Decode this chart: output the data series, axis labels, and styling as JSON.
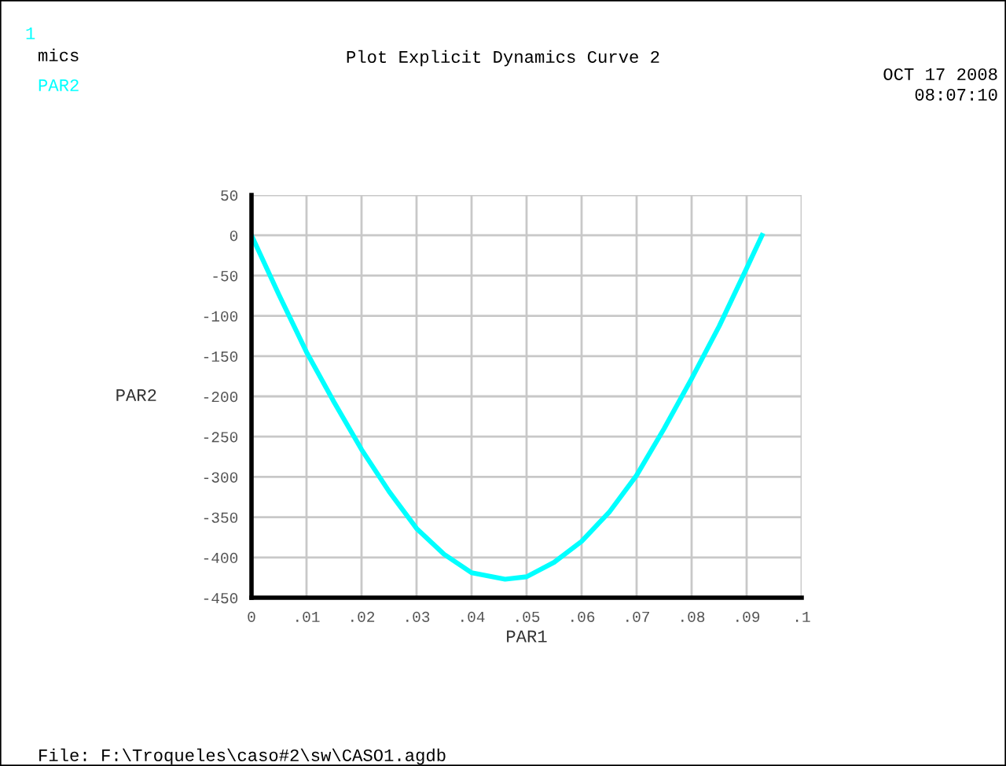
{
  "chart_data": {
    "type": "line",
    "title": "Plot Explicit Dynamics Curve 2",
    "xlabel": "PAR1",
    "ylabel": "PAR2",
    "annotations": [
      "1",
      "mics",
      "PAR2",
      "OCT 17 2008",
      "08:07:10",
      "File: F:\\Troqueles\\caso#2\\sw\\CASO1.agdb"
    ],
    "x": [
      0,
      0.005,
      0.01,
      0.015,
      0.02,
      0.025,
      0.03,
      0.035,
      0.04,
      0.0461,
      0.05,
      0.055,
      0.06,
      0.065,
      0.07,
      0.075,
      0.08,
      0.085,
      0.09,
      0.0928
    ],
    "series": [
      {
        "color": "#00ffff",
        "values": [
          0,
          -74,
          -145,
          -207,
          -266,
          -318,
          -364,
          -396,
          -419,
          -427,
          -424,
          -406,
          -380,
          -344,
          -298,
          -240,
          -178,
          -113,
          -41,
          0
        ]
      }
    ],
    "xlim": [
      0,
      0.1
    ],
    "xticks": [
      {
        "value": 0,
        "label": "0"
      },
      {
        "value": 0.01,
        "label": ".01"
      },
      {
        "value": 0.02,
        "label": ".02"
      },
      {
        "value": 0.03,
        "label": ".03"
      },
      {
        "value": 0.04,
        "label": ".04"
      },
      {
        "value": 0.05,
        "label": ".05"
      },
      {
        "value": 0.06,
        "label": ".06"
      },
      {
        "value": 0.07,
        "label": ".07"
      },
      {
        "value": 0.08,
        "label": ".08"
      },
      {
        "value": 0.09,
        "label": ".09"
      },
      {
        "value": 0.1,
        "label": ".1"
      }
    ],
    "ylim": [
      -450,
      50
    ],
    "yticks": [
      50,
      0,
      -50,
      -100,
      -150,
      -200,
      -250,
      -300,
      -350,
      -400,
      -450
    ],
    "grid": true,
    "legend": false
  }
}
